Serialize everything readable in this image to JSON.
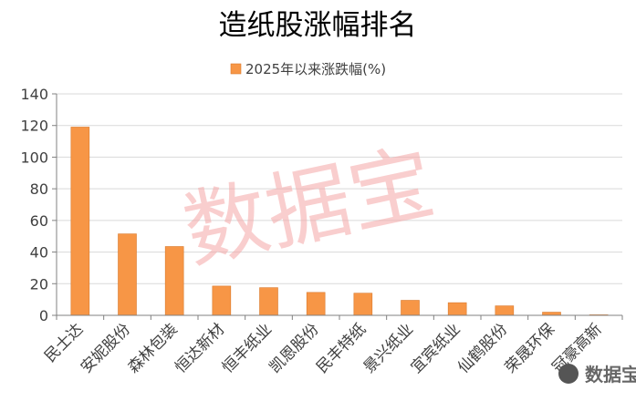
{
  "chart_data": {
    "type": "bar",
    "title": "造纸股涨幅排名",
    "legend": "top",
    "categories": [
      "民士达",
      "安妮股份",
      "森林包装",
      "恒达新材",
      "恒丰纸业",
      "凯恩股份",
      "民丰特纸",
      "景兴纸业",
      "宜宾纸业",
      "仙鹤股份",
      "荣晟环保",
      "冠豪高新"
    ],
    "series": [
      {
        "name": "2025年以来涨跌幅(%)",
        "values": [
          119,
          51.5,
          43.5,
          18.5,
          17.5,
          14.5,
          14,
          9.5,
          8,
          6,
          2,
          0.3
        ]
      }
    ],
    "ylim": [
      0,
      140
    ],
    "yticks": [
      0,
      20,
      40,
      60,
      80,
      100,
      120,
      140
    ],
    "grid": true,
    "colors": {
      "bar": "#F79646",
      "bar_edge": "#D97A2E",
      "grid": "#D9D9D9",
      "axis": "#808080",
      "text": "#404040"
    }
  },
  "watermark": {
    "text": "数据宝",
    "color": "#F4A6A6"
  },
  "logo": {
    "text": "数据宝"
  }
}
